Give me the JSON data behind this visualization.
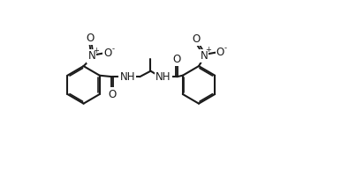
{
  "bg": "#ffffff",
  "lc": "#1a1a1a",
  "lw": 1.5,
  "fs": 8.5,
  "fig_w": 3.95,
  "fig_h": 1.92,
  "dpi": 100,
  "xlim": [
    0,
    10.5
  ],
  "ylim": [
    0.2,
    5.2
  ]
}
